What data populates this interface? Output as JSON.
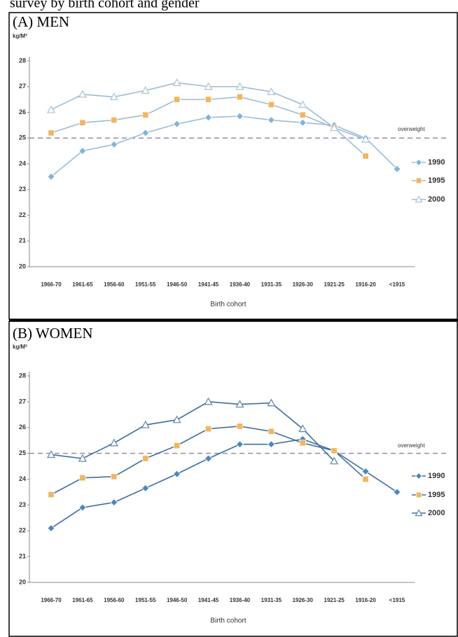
{
  "header": "survey by birth cohort and gender",
  "chart_data": [
    {
      "type": "line",
      "title": "(A) MEN",
      "y_label": "kg/M²",
      "x_label": "Birth cohort",
      "categories": [
        "1966-70",
        "1961-65",
        "1956-60",
        "1951-55",
        "1946-50",
        "1941-45",
        "1936-40",
        "1931-35",
        "1926-30",
        "1921-25",
        "1916-20",
        "<1915"
      ],
      "series": [
        {
          "name": "1990",
          "color": "#7fb4dc",
          "marker": "diamond",
          "values": [
            23.5,
            24.5,
            24.75,
            25.2,
            25.55,
            25.8,
            25.85,
            25.7,
            25.6,
            25.5,
            25.0,
            23.8
          ]
        },
        {
          "name": "1995",
          "color": "#f4b55c",
          "marker": "square",
          "values": [
            25.2,
            25.6,
            25.7,
            25.9,
            26.5,
            26.5,
            26.6,
            26.3,
            25.9,
            25.4,
            24.3,
            null
          ]
        },
        {
          "name": "2000",
          "color": "#a9c3d8",
          "marker": "triangle",
          "values": [
            26.1,
            26.7,
            26.6,
            26.85,
            27.15,
            27.0,
            27.0,
            26.8,
            26.3,
            25.4,
            24.95,
            null
          ]
        }
      ],
      "line_color": "#9bbcd6",
      "reference_line": {
        "value": 25,
        "label": "overweight"
      },
      "ylim": [
        20,
        28
      ],
      "yticks": [
        20,
        21,
        22,
        23,
        24,
        25,
        26,
        27,
        28
      ],
      "grid": false,
      "legend": "right"
    },
    {
      "type": "line",
      "title": "(B) WOMEN",
      "y_label": "kg/M²",
      "x_label": "Birth cohort",
      "categories": [
        "1966-70",
        "1961-65",
        "1956-60",
        "1951-55",
        "1946-50",
        "1941-45",
        "1936-40",
        "1931-35",
        "1926-30",
        "1921-25",
        "1916-20",
        "<1915"
      ],
      "series": [
        {
          "name": "1990",
          "color": "#4a86c2",
          "marker": "diamond",
          "values": [
            22.1,
            22.9,
            23.1,
            23.65,
            24.2,
            24.8,
            25.35,
            25.35,
            25.55,
            25.1,
            24.3,
            23.5
          ]
        },
        {
          "name": "1995",
          "color": "#f4b55c",
          "marker": "square",
          "values": [
            23.4,
            24.05,
            24.1,
            24.8,
            25.3,
            25.95,
            26.05,
            25.85,
            25.4,
            25.1,
            24.0,
            null
          ]
        },
        {
          "name": "2000",
          "color": "#5a84b0",
          "marker": "triangle",
          "values": [
            24.95,
            24.8,
            25.4,
            26.1,
            26.3,
            27.0,
            26.9,
            26.95,
            25.95,
            24.7,
            null,
            null
          ]
        }
      ],
      "line_color": "#3f6f9f",
      "reference_line": {
        "value": 25,
        "label": "overweight"
      },
      "ylim": [
        20,
        28
      ],
      "yticks": [
        20,
        21,
        22,
        23,
        24,
        25,
        26,
        27,
        28
      ],
      "grid": false,
      "legend": "right"
    }
  ]
}
